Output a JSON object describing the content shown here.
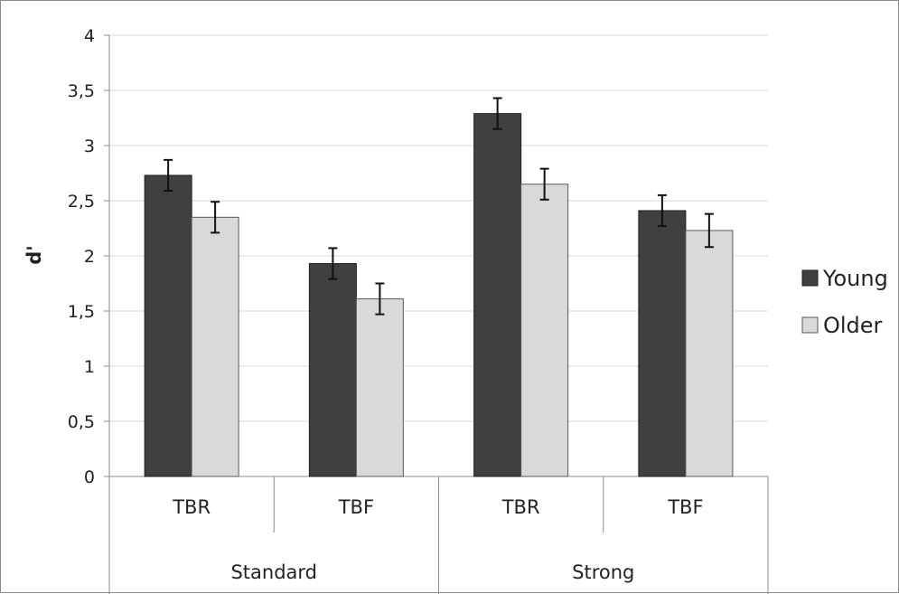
{
  "chart_data": {
    "type": "bar",
    "ylabel": "d'",
    "ylim": [
      0,
      4
    ],
    "yticks": [
      "0",
      "0,5",
      "1",
      "1,5",
      "2",
      "2,5",
      "3",
      "3,5",
      "4"
    ],
    "groups": [
      {
        "label": "Standard",
        "categories": [
          "TBR",
          "TBF"
        ]
      },
      {
        "label": "Strong",
        "categories": [
          "TBR",
          "TBF"
        ]
      }
    ],
    "categories": [
      "TBR",
      "TBF",
      "TBR",
      "TBF"
    ],
    "series": [
      {
        "name": "Young",
        "color": "#404040",
        "values": [
          2.73,
          1.93,
          3.29,
          2.41
        ],
        "errors": [
          0.14,
          0.14,
          0.14,
          0.14
        ]
      },
      {
        "name": "Older",
        "color": "#d9d9d9",
        "values": [
          2.35,
          1.61,
          2.65,
          2.23
        ],
        "errors": [
          0.14,
          0.14,
          0.14,
          0.15
        ]
      }
    ],
    "grid": true,
    "legend": "right"
  }
}
